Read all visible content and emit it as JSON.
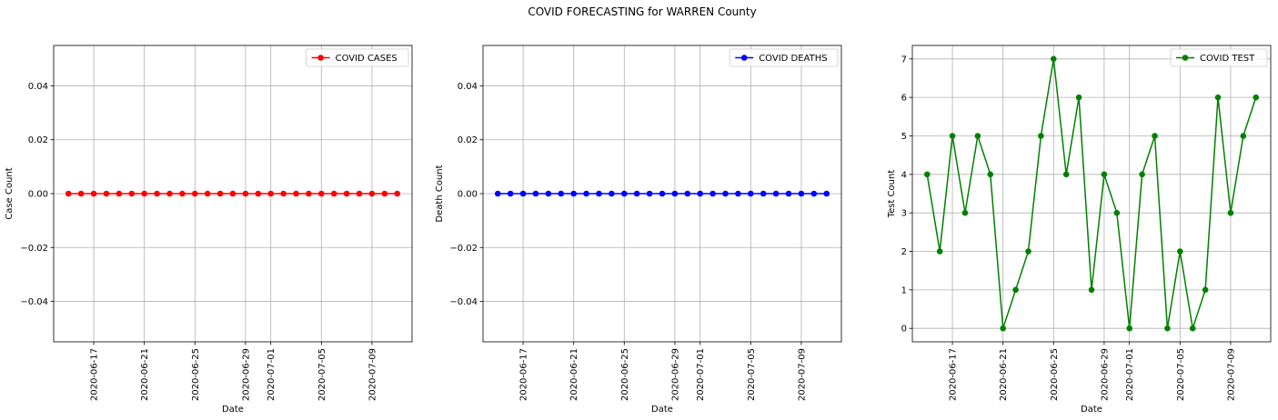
{
  "figure": {
    "title": "COVID FORECASTING for WARREN County"
  },
  "chart_data": [
    {
      "type": "line",
      "title": "",
      "xlabel": "Date",
      "ylabel": "Case Count",
      "x_start": "2020-06-15",
      "x": [
        "2020-06-15",
        "2020-06-16",
        "2020-06-17",
        "2020-06-18",
        "2020-06-19",
        "2020-06-20",
        "2020-06-21",
        "2020-06-22",
        "2020-06-23",
        "2020-06-24",
        "2020-06-25",
        "2020-06-26",
        "2020-06-27",
        "2020-06-28",
        "2020-06-29",
        "2020-06-30",
        "2020-07-01",
        "2020-07-02",
        "2020-07-03",
        "2020-07-04",
        "2020-07-05",
        "2020-07-06",
        "2020-07-07",
        "2020-07-08",
        "2020-07-09",
        "2020-07-10",
        "2020-07-11"
      ],
      "xticks": [
        "2020-06-17",
        "2020-06-21",
        "2020-06-25",
        "2020-06-29",
        "2020-07-01",
        "2020-07-05",
        "2020-07-09"
      ],
      "ylim": [
        -0.055,
        0.055
      ],
      "yticks": [
        -0.04,
        -0.02,
        0.0,
        0.02,
        0.04
      ],
      "ytick_labels": [
        "−0.04",
        "−0.02",
        "0.00",
        "0.02",
        "0.04"
      ],
      "grid": true,
      "legend_position": "top-right",
      "series": [
        {
          "name": "COVID CASES",
          "color": "#ff0000",
          "values": [
            0,
            0,
            0,
            0,
            0,
            0,
            0,
            0,
            0,
            0,
            0,
            0,
            0,
            0,
            0,
            0,
            0,
            0,
            0,
            0,
            0,
            0,
            0,
            0,
            0,
            0,
            0
          ]
        }
      ]
    },
    {
      "type": "line",
      "title": "",
      "xlabel": "Date",
      "ylabel": "Death Count",
      "x": [
        "2020-06-15",
        "2020-06-16",
        "2020-06-17",
        "2020-06-18",
        "2020-06-19",
        "2020-06-20",
        "2020-06-21",
        "2020-06-22",
        "2020-06-23",
        "2020-06-24",
        "2020-06-25",
        "2020-06-26",
        "2020-06-27",
        "2020-06-28",
        "2020-06-29",
        "2020-06-30",
        "2020-07-01",
        "2020-07-02",
        "2020-07-03",
        "2020-07-04",
        "2020-07-05",
        "2020-07-06",
        "2020-07-07",
        "2020-07-08",
        "2020-07-09",
        "2020-07-10",
        "2020-07-11"
      ],
      "xticks": [
        "2020-06-17",
        "2020-06-21",
        "2020-06-25",
        "2020-06-29",
        "2020-07-01",
        "2020-07-05",
        "2020-07-09"
      ],
      "ylim": [
        -0.055,
        0.055
      ],
      "yticks": [
        -0.04,
        -0.02,
        0.0,
        0.02,
        0.04
      ],
      "ytick_labels": [
        "−0.04",
        "−0.02",
        "0.00",
        "0.02",
        "0.04"
      ],
      "grid": true,
      "legend_position": "top-right",
      "series": [
        {
          "name": "COVID DEATHS",
          "color": "#0000ff",
          "values": [
            0,
            0,
            0,
            0,
            0,
            0,
            0,
            0,
            0,
            0,
            0,
            0,
            0,
            0,
            0,
            0,
            0,
            0,
            0,
            0,
            0,
            0,
            0,
            0,
            0,
            0,
            0
          ]
        }
      ]
    },
    {
      "type": "line",
      "title": "",
      "xlabel": "Date",
      "ylabel": "Test Count",
      "x": [
        "2020-06-15",
        "2020-06-16",
        "2020-06-17",
        "2020-06-18",
        "2020-06-19",
        "2020-06-20",
        "2020-06-21",
        "2020-06-22",
        "2020-06-23",
        "2020-06-24",
        "2020-06-25",
        "2020-06-26",
        "2020-06-27",
        "2020-06-28",
        "2020-06-29",
        "2020-06-30",
        "2020-07-01",
        "2020-07-02",
        "2020-07-03",
        "2020-07-04",
        "2020-07-05",
        "2020-07-06",
        "2020-07-07",
        "2020-07-08",
        "2020-07-09",
        "2020-07-10",
        "2020-07-11"
      ],
      "xticks": [
        "2020-06-17",
        "2020-06-21",
        "2020-06-25",
        "2020-06-29",
        "2020-07-01",
        "2020-07-05",
        "2020-07-09"
      ],
      "ylim": [
        -0.35,
        7.35
      ],
      "yticks": [
        0,
        1,
        2,
        3,
        4,
        5,
        6,
        7
      ],
      "ytick_labels": [
        "0",
        "1",
        "2",
        "3",
        "4",
        "5",
        "6",
        "7"
      ],
      "grid": true,
      "legend_position": "top-right",
      "series": [
        {
          "name": "COVID TEST",
          "color": "#008000",
          "values": [
            4,
            2,
            5,
            3,
            5,
            4,
            0,
            1,
            2,
            5,
            7,
            4,
            6,
            1,
            4,
            3,
            0,
            4,
            5,
            0,
            2,
            0,
            1,
            6,
            3,
            5,
            6
          ]
        }
      ]
    }
  ]
}
